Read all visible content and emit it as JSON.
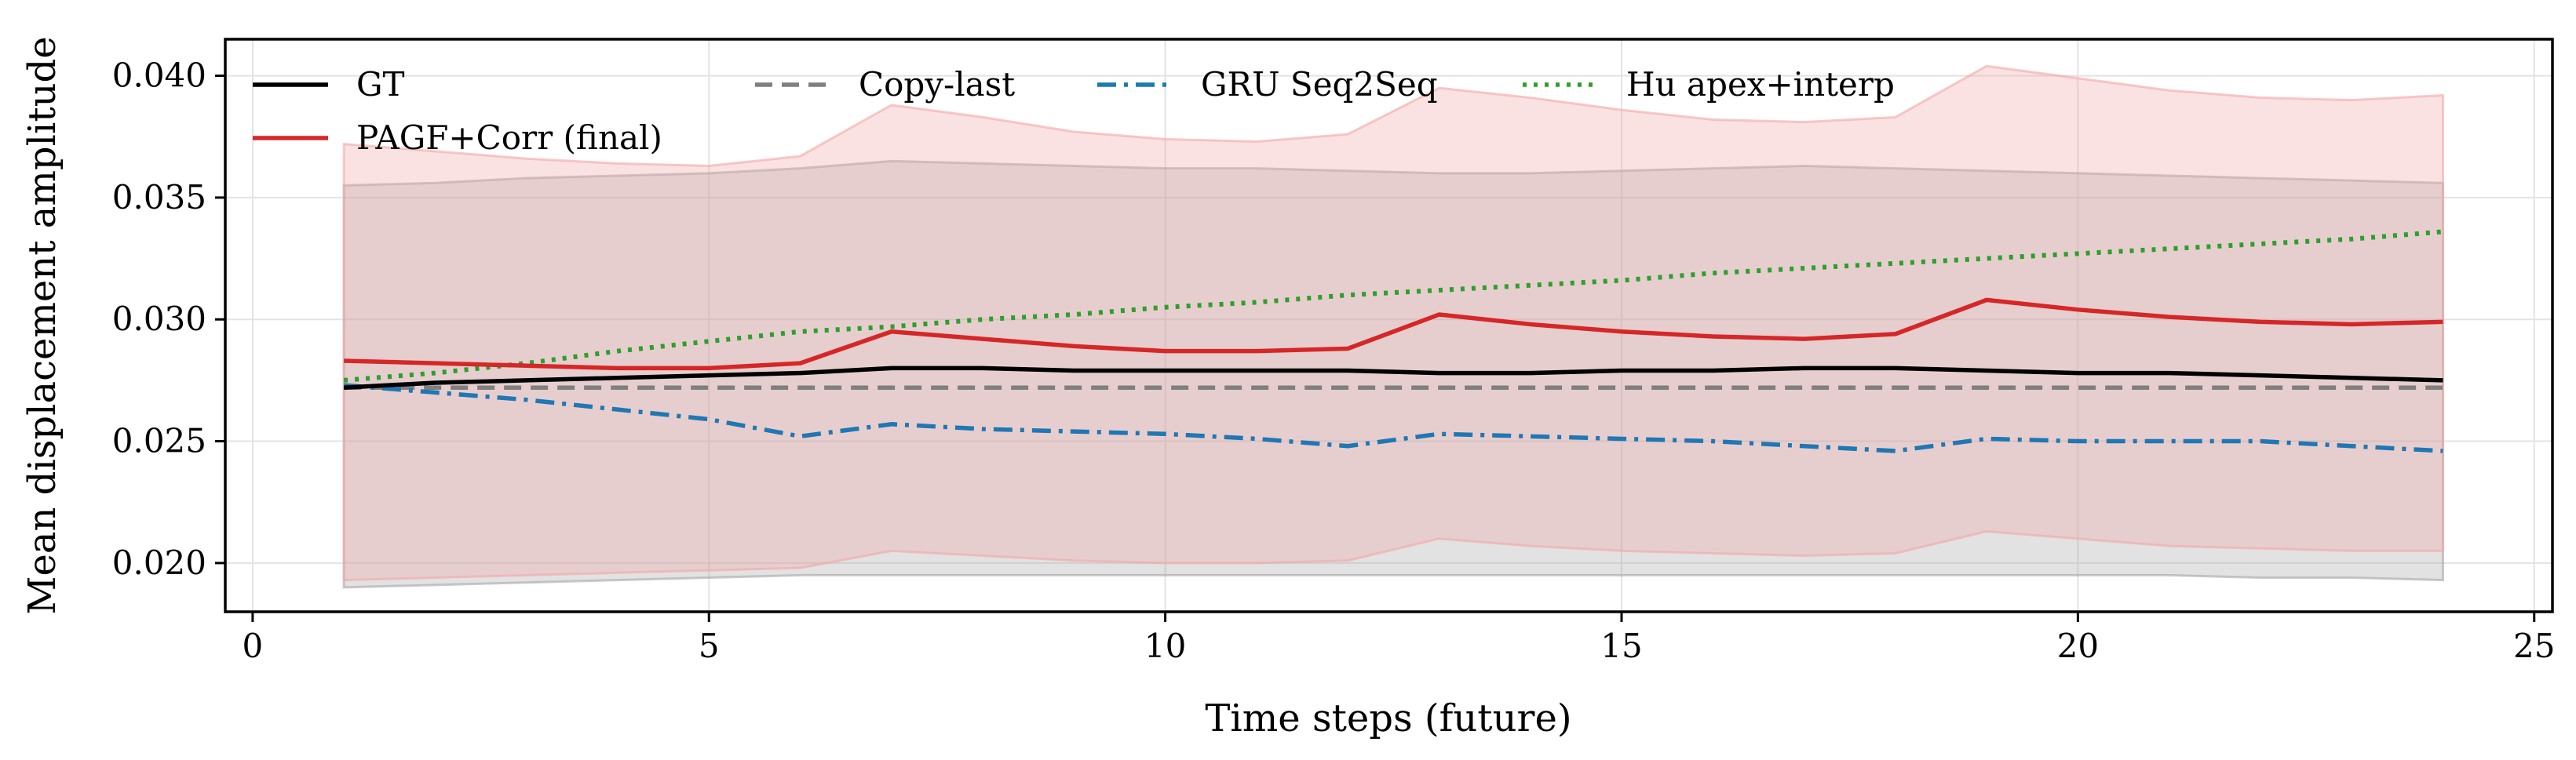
{
  "chart_data": {
    "type": "line",
    "title": "",
    "xlabel": "Time steps (future)",
    "ylabel": "Mean displacement amplitude",
    "xlim": [
      -0.3,
      25.2
    ],
    "ylim": [
      0.018,
      0.0415
    ],
    "xticks": [
      0,
      5,
      10,
      15,
      20,
      25
    ],
    "yticks": [
      0.02,
      0.025,
      0.03,
      0.035,
      0.04
    ],
    "ytick_labels": [
      "0.020",
      "0.025",
      "0.030",
      "0.035",
      "0.040"
    ],
    "grid": true,
    "legend_position": "top",
    "x": [
      1,
      2,
      3,
      4,
      5,
      6,
      7,
      8,
      9,
      10,
      11,
      12,
      13,
      14,
      15,
      16,
      17,
      18,
      19,
      20,
      21,
      22,
      23,
      24
    ],
    "series": [
      {
        "name": "GT",
        "style": "solid",
        "color": "#000000",
        "values": [
          0.0272,
          0.0274,
          0.0275,
          0.0276,
          0.0277,
          0.0278,
          0.028,
          0.028,
          0.0279,
          0.0279,
          0.0279,
          0.0279,
          0.0278,
          0.0278,
          0.0279,
          0.0279,
          0.028,
          0.028,
          0.0279,
          0.0278,
          0.0278,
          0.0277,
          0.0276,
          0.0275
        ],
        "band_lower": [
          0.019,
          0.0191,
          0.0192,
          0.0193,
          0.0194,
          0.0195,
          0.0195,
          0.0195,
          0.0195,
          0.0195,
          0.0195,
          0.0195,
          0.0195,
          0.0195,
          0.0195,
          0.0195,
          0.0195,
          0.0195,
          0.0195,
          0.0195,
          0.0195,
          0.0194,
          0.0194,
          0.0193
        ],
        "band_upper": [
          0.0355,
          0.0356,
          0.0358,
          0.0359,
          0.036,
          0.0362,
          0.0365,
          0.0364,
          0.0363,
          0.0362,
          0.0362,
          0.0361,
          0.036,
          0.036,
          0.0361,
          0.0362,
          0.0363,
          0.0362,
          0.0361,
          0.036,
          0.0359,
          0.0358,
          0.0357,
          0.0356
        ],
        "band_color": "#a6a6a6"
      },
      {
        "name": "PAGF+Corr (final)",
        "style": "solid",
        "color": "#d62728",
        "values": [
          0.0283,
          0.0282,
          0.0281,
          0.028,
          0.028,
          0.0282,
          0.0295,
          0.0292,
          0.0289,
          0.0287,
          0.0287,
          0.0288,
          0.0302,
          0.0298,
          0.0295,
          0.0293,
          0.0292,
          0.0294,
          0.0308,
          0.0304,
          0.0301,
          0.0299,
          0.0298,
          0.0299
        ],
        "band_lower": [
          0.0193,
          0.0194,
          0.0195,
          0.0196,
          0.0197,
          0.0198,
          0.0205,
          0.0203,
          0.0201,
          0.02,
          0.02,
          0.0201,
          0.021,
          0.0207,
          0.0205,
          0.0204,
          0.0203,
          0.0204,
          0.0213,
          0.021,
          0.0207,
          0.0206,
          0.0205,
          0.0205
        ],
        "band_upper": [
          0.0372,
          0.0369,
          0.0366,
          0.0364,
          0.0363,
          0.0367,
          0.0388,
          0.0383,
          0.0377,
          0.0374,
          0.0373,
          0.0376,
          0.0395,
          0.0391,
          0.0386,
          0.0382,
          0.0381,
          0.0383,
          0.0404,
          0.0399,
          0.0394,
          0.0391,
          0.039,
          0.0392
        ],
        "band_color": "#f4a6a6"
      },
      {
        "name": "Copy-last",
        "style": "dashed",
        "color": "#7f7f7f",
        "values": [
          0.0272,
          0.0272,
          0.0272,
          0.0272,
          0.0272,
          0.0272,
          0.0272,
          0.0272,
          0.0272,
          0.0272,
          0.0272,
          0.0272,
          0.0272,
          0.0272,
          0.0272,
          0.0272,
          0.0272,
          0.0272,
          0.0272,
          0.0272,
          0.0272,
          0.0272,
          0.0272,
          0.0272
        ]
      },
      {
        "name": "GRU Seq2Seq",
        "style": "dashdot",
        "color": "#1f77b4",
        "values": [
          0.0273,
          0.027,
          0.0267,
          0.0263,
          0.0259,
          0.0252,
          0.0257,
          0.0255,
          0.0254,
          0.0253,
          0.0251,
          0.0248,
          0.0253,
          0.0252,
          0.0251,
          0.025,
          0.0248,
          0.0246,
          0.0251,
          0.025,
          0.025,
          0.025,
          0.0248,
          0.0246
        ]
      },
      {
        "name": "Hu apex+interp",
        "style": "dotted",
        "color": "#2ca02c",
        "values": [
          0.0275,
          0.0278,
          0.0282,
          0.0287,
          0.0291,
          0.0295,
          0.0297,
          0.03,
          0.0302,
          0.0305,
          0.0307,
          0.031,
          0.0312,
          0.0314,
          0.0316,
          0.0319,
          0.0321,
          0.0323,
          0.0325,
          0.0327,
          0.0329,
          0.0331,
          0.0333,
          0.0336
        ]
      }
    ]
  }
}
